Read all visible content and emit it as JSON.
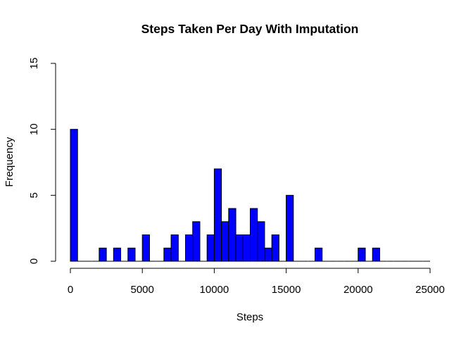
{
  "chart_data": {
    "type": "bar",
    "title": "Steps Taken Per Day With Imputation",
    "xlabel": "Steps",
    "ylabel": "Frequency",
    "xlim": [
      0,
      25000
    ],
    "ylim": [
      0,
      15
    ],
    "x_ticks": [
      0,
      5000,
      10000,
      15000,
      20000,
      25000
    ],
    "y_ticks": [
      0,
      5,
      10,
      15
    ],
    "bin_width": 500,
    "bin_starts": [
      0,
      500,
      1000,
      1500,
      2000,
      2500,
      3000,
      3500,
      4000,
      4500,
      5000,
      5500,
      6000,
      6500,
      7000,
      7500,
      8000,
      8500,
      9000,
      9500,
      10000,
      10500,
      11000,
      11500,
      12000,
      12500,
      13000,
      13500,
      14000,
      14500,
      15000,
      15500,
      16000,
      16500,
      17000,
      17500,
      18000,
      18500,
      19000,
      19500,
      20000,
      20500,
      21000,
      21500,
      22000,
      22500,
      23000,
      23500,
      24000,
      24500
    ],
    "values": [
      10,
      0,
      0,
      0,
      1,
      0,
      1,
      0,
      1,
      0,
      2,
      0,
      0,
      1,
      2,
      0,
      2,
      3,
      0,
      2,
      7,
      3,
      4,
      2,
      2,
      4,
      3,
      1,
      2,
      0,
      5,
      0,
      0,
      0,
      1,
      0,
      0,
      0,
      0,
      0,
      1,
      0,
      1,
      0,
      0,
      0,
      0,
      0,
      0,
      0
    ],
    "bar_color": "#0000FF",
    "grid": false
  }
}
